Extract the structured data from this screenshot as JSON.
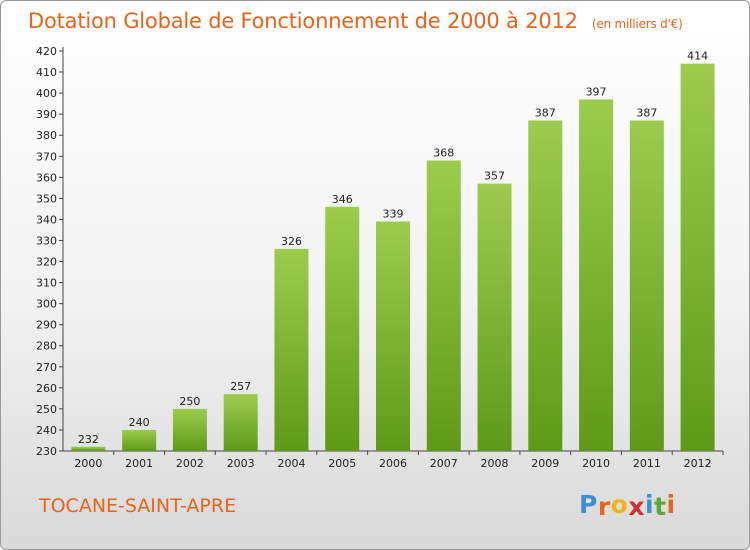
{
  "chart_data": {
    "type": "bar",
    "title": "Dotation Globale de Fonctionnement de 2000 à 2012",
    "subtitle": "(en milliers d'€)",
    "categories": [
      "2000",
      "2001",
      "2002",
      "2003",
      "2004",
      "2005",
      "2006",
      "2007",
      "2008",
      "2009",
      "2010",
      "2011",
      "2012"
    ],
    "values": [
      232,
      240,
      250,
      257,
      326,
      346,
      339,
      368,
      357,
      387,
      397,
      387,
      414
    ],
    "ylim": [
      230,
      420
    ],
    "ytick_step": 10,
    "grid": false,
    "bar_color_top": "#9ccc4e",
    "bar_color_bottom": "#5e9a17"
  },
  "footer": {
    "commune": "TOCANE-SAINT-APRE",
    "logo_letters": [
      "P",
      "r",
      "o",
      "x",
      "i",
      "t",
      "i"
    ],
    "logo_colors": [
      "#3a8fd6",
      "#e8641b",
      "#f2b21a",
      "#d62f2f",
      "#3a8fd6",
      "#5ca832",
      "#e8641b"
    ]
  }
}
